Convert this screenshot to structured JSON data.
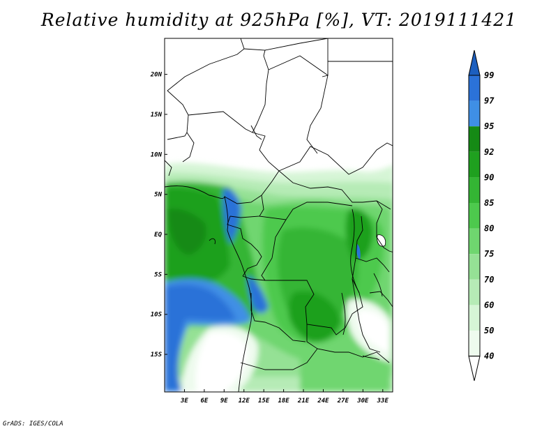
{
  "title": "Relative humidity at 925hPa [%], VT: 2019111421",
  "footer": "GrADS: IGES/COLA",
  "map": {
    "lon_labels": [
      "3E",
      "6E",
      "9E",
      "12E",
      "15E",
      "18E",
      "21E",
      "24E",
      "27E",
      "30E",
      "33E"
    ],
    "lat_labels": [
      "20N",
      "15N",
      "10N",
      "5N",
      "EQ",
      "5S",
      "10S",
      "15S"
    ],
    "lon_range": [
      0,
      34.5
    ],
    "lat_range": [
      -19.7,
      24.5
    ]
  },
  "legend": {
    "labels": [
      "99",
      "97",
      "95",
      "92",
      "90",
      "85",
      "80",
      "75",
      "70",
      "60",
      "50",
      "40"
    ],
    "colors": {
      "gt99": "#1c5fbf",
      "97_99": "#2b72d8",
      "95_97": "#3f8fe5",
      "92_95": "#158a15",
      "90_92": "#1fa01f",
      "85_90": "#34b534",
      "80_85": "#4dc94d",
      "75_80": "#6fd66f",
      "70_75": "#95e195",
      "60_70": "#b6ebb6",
      "50_60": "#d6f5d6",
      "40_50": "#eefbee",
      "lt40": "#ffffff"
    }
  }
}
